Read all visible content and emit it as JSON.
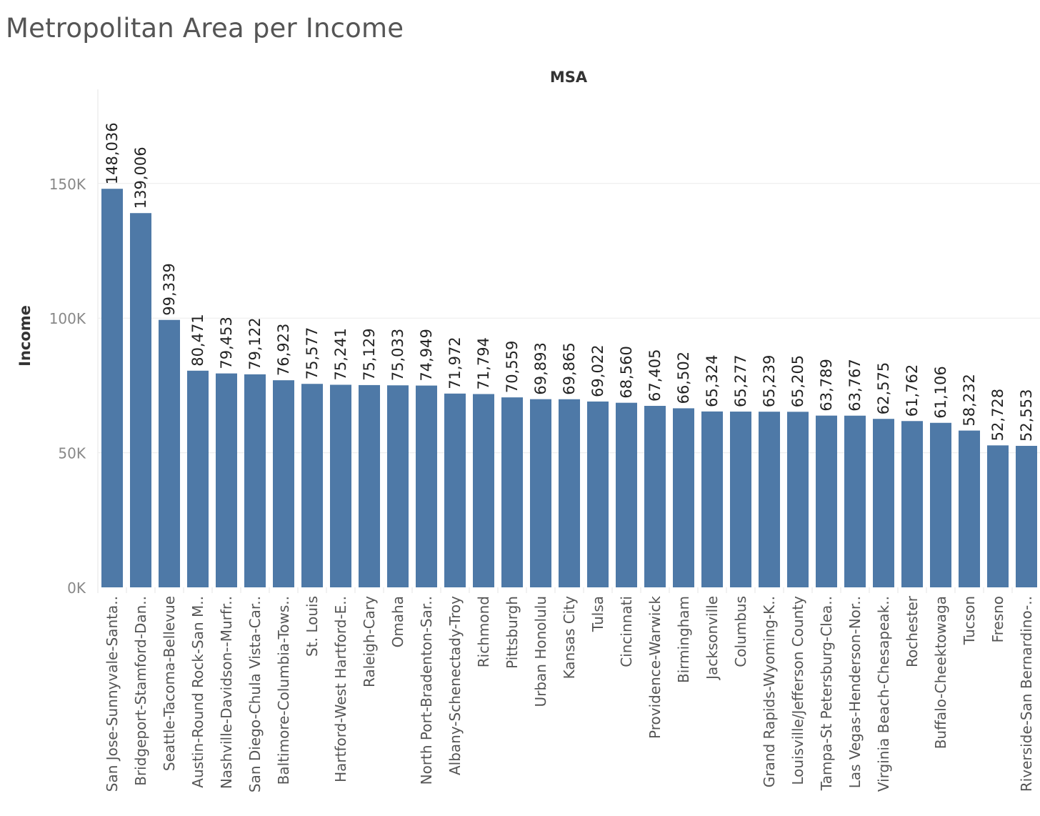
{
  "chart_data": {
    "type": "bar",
    "title": "Metropolitan Area per Income",
    "column_header": "MSA",
    "ylabel": "Income",
    "xlabel": "",
    "ylim": [
      0,
      185000
    ],
    "yticks": [
      0,
      50000,
      100000,
      150000
    ],
    "ytick_labels": [
      "0K",
      "50K",
      "100K",
      "150K"
    ],
    "gridlines": true,
    "bar_color": "#4e79a7",
    "categories": [
      "San Jose-Sunnyvale-Santa..",
      "Bridgeport-Stamford-Dan..",
      "Seattle-Tacoma-Bellevue",
      "Austin-Round Rock-San M..",
      "Nashville-Davidson--Murfr..",
      "San Diego-Chula Vista-Car..",
      "Baltimore-Columbia-Tows..",
      "St. Louis",
      "Hartford-West Hartford-E..",
      "Raleigh-Cary",
      "Omaha",
      "North Port-Bradenton-Sar..",
      "Albany-Schenectady-Troy",
      "Richmond",
      "Pittsburgh",
      "Urban Honolulu",
      "Kansas City",
      "Tulsa",
      "Cincinnati",
      "Providence-Warwick",
      "Birmingham",
      "Jacksonville",
      "Columbus",
      "Grand Rapids-Wyoming-K..",
      "Louisville/Jefferson County",
      "Tampa-St Petersburg-Clea..",
      "Las Vegas-Henderson-Nor..",
      "Virginia Beach-Chesapeak..",
      "Rochester",
      "Buffalo-Cheektowaga",
      "Tucson",
      "Fresno",
      "Riverside-San Bernardino-.."
    ],
    "values": [
      148036,
      139006,
      99339,
      80471,
      79453,
      79122,
      76923,
      75577,
      75241,
      75129,
      75033,
      74949,
      71972,
      71794,
      70559,
      69893,
      69865,
      69022,
      68560,
      67405,
      66502,
      65324,
      65277,
      65239,
      65205,
      63789,
      63767,
      62575,
      61762,
      61106,
      58232,
      52728,
      52553
    ],
    "value_labels": [
      "148,036",
      "139,006",
      "99,339",
      "80,471",
      "79,453",
      "79,122",
      "76,923",
      "75,577",
      "75,241",
      "75,129",
      "75,033",
      "74,949",
      "71,972",
      "71,794",
      "70,559",
      "69,893",
      "69,865",
      "69,022",
      "68,560",
      "67,405",
      "66,502",
      "65,324",
      "65,277",
      "65,239",
      "65,205",
      "63,789",
      "63,767",
      "62,575",
      "61,762",
      "61,106",
      "58,232",
      "52,728",
      "52,553"
    ]
  }
}
